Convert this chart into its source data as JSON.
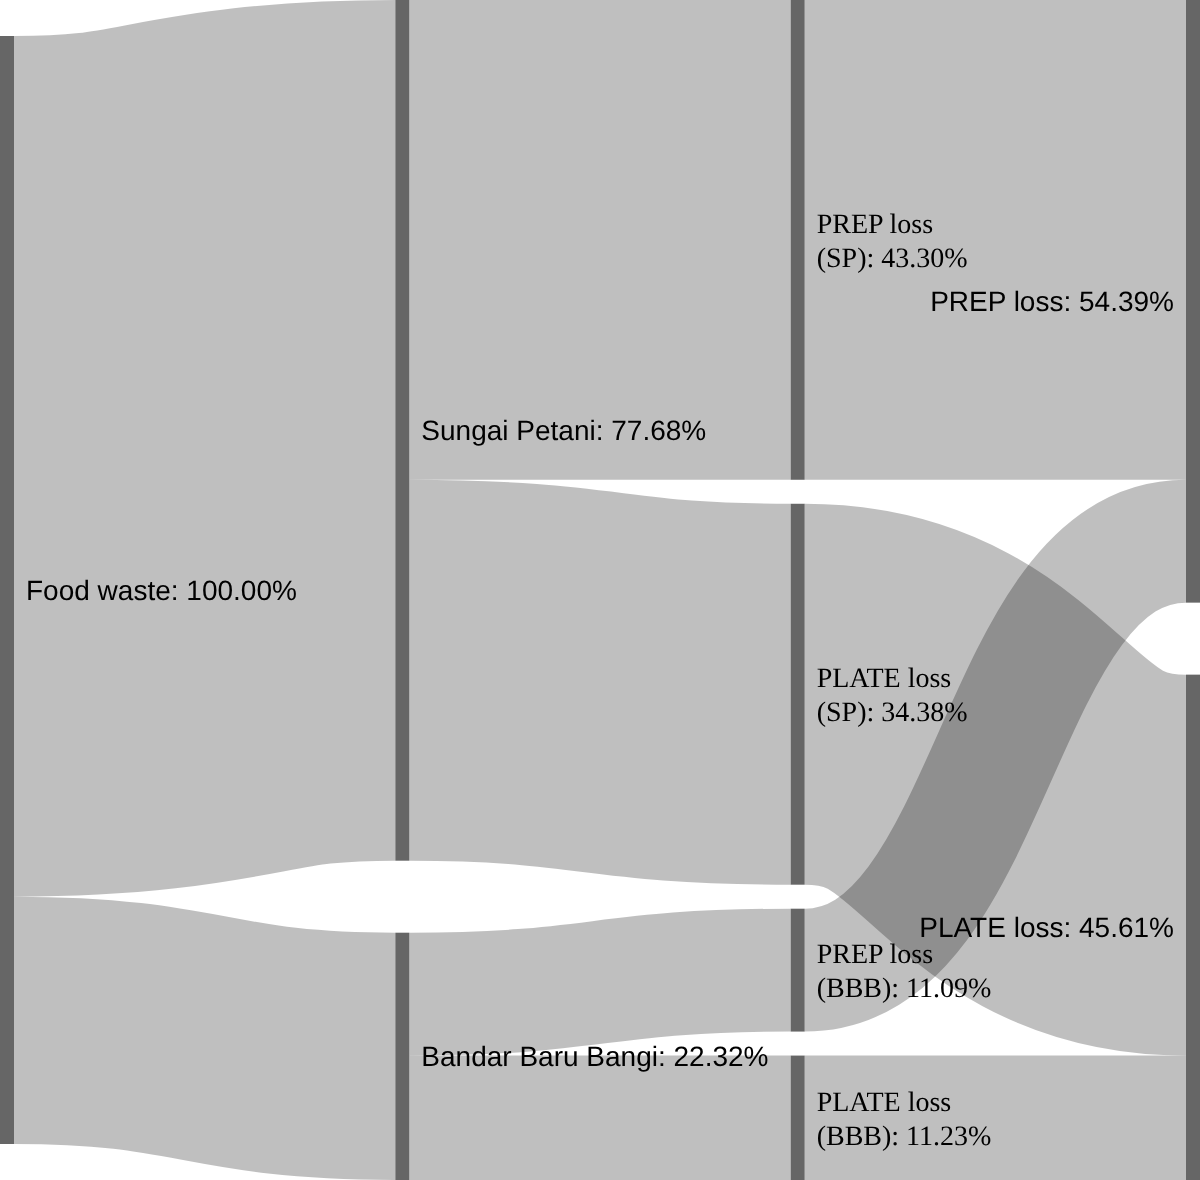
{
  "chart_data": {
    "type": "other",
    "categories": [
      "Food waste",
      "Sungai Petani",
      "Bandar Baru Bangi",
      "PREP loss (SP)",
      "PLATE loss (SP)",
      "PREP loss (BBB)",
      "PLATE loss (BBB)",
      "PREP loss",
      "PLATE loss"
    ],
    "value_labels": [
      ": 100.00%",
      ": 77.68%",
      ": 22.32%",
      ": 43.30%",
      ": 34.38%",
      ": 11.09%",
      ": 11.23%",
      ": 54.39%",
      ": 45.61%"
    ],
    "values": [
      100.0,
      77.68,
      22.32,
      43.3,
      34.38,
      11.09,
      11.23,
      54.39,
      45.61
    ],
    "series": [
      {
        "values": [
          null,
          true,
          true,
          null,
          null,
          null,
          null,
          null,
          null
        ]
      },
      {
        "values": [
          null,
          null,
          null,
          true,
          true,
          null,
          null,
          null,
          null
        ]
      },
      {
        "values": [
          null,
          null,
          null,
          null,
          null,
          true,
          true,
          null,
          null
        ]
      },
      {
        "values": [
          null,
          null,
          null,
          null,
          null,
          null,
          null,
          true,
          null
        ]
      },
      {
        "values": [
          null,
          null,
          null,
          null,
          null,
          null,
          null,
          null,
          true
        ]
      },
      {
        "values": [
          null,
          null,
          null,
          null,
          null,
          null,
          null,
          true,
          null
        ]
      },
      {
        "values": [
          null,
          null,
          null,
          null,
          null,
          null,
          null,
          null,
          true
        ]
      },
      {
        "values": [
          null,
          null,
          null,
          null,
          null,
          null,
          null,
          null,
          null
        ]
      },
      {
        "values": [
          null,
          null,
          null,
          null,
          null,
          null,
          null,
          null,
          null
        ]
      }
    ],
    "color": "#666666"
  }
}
